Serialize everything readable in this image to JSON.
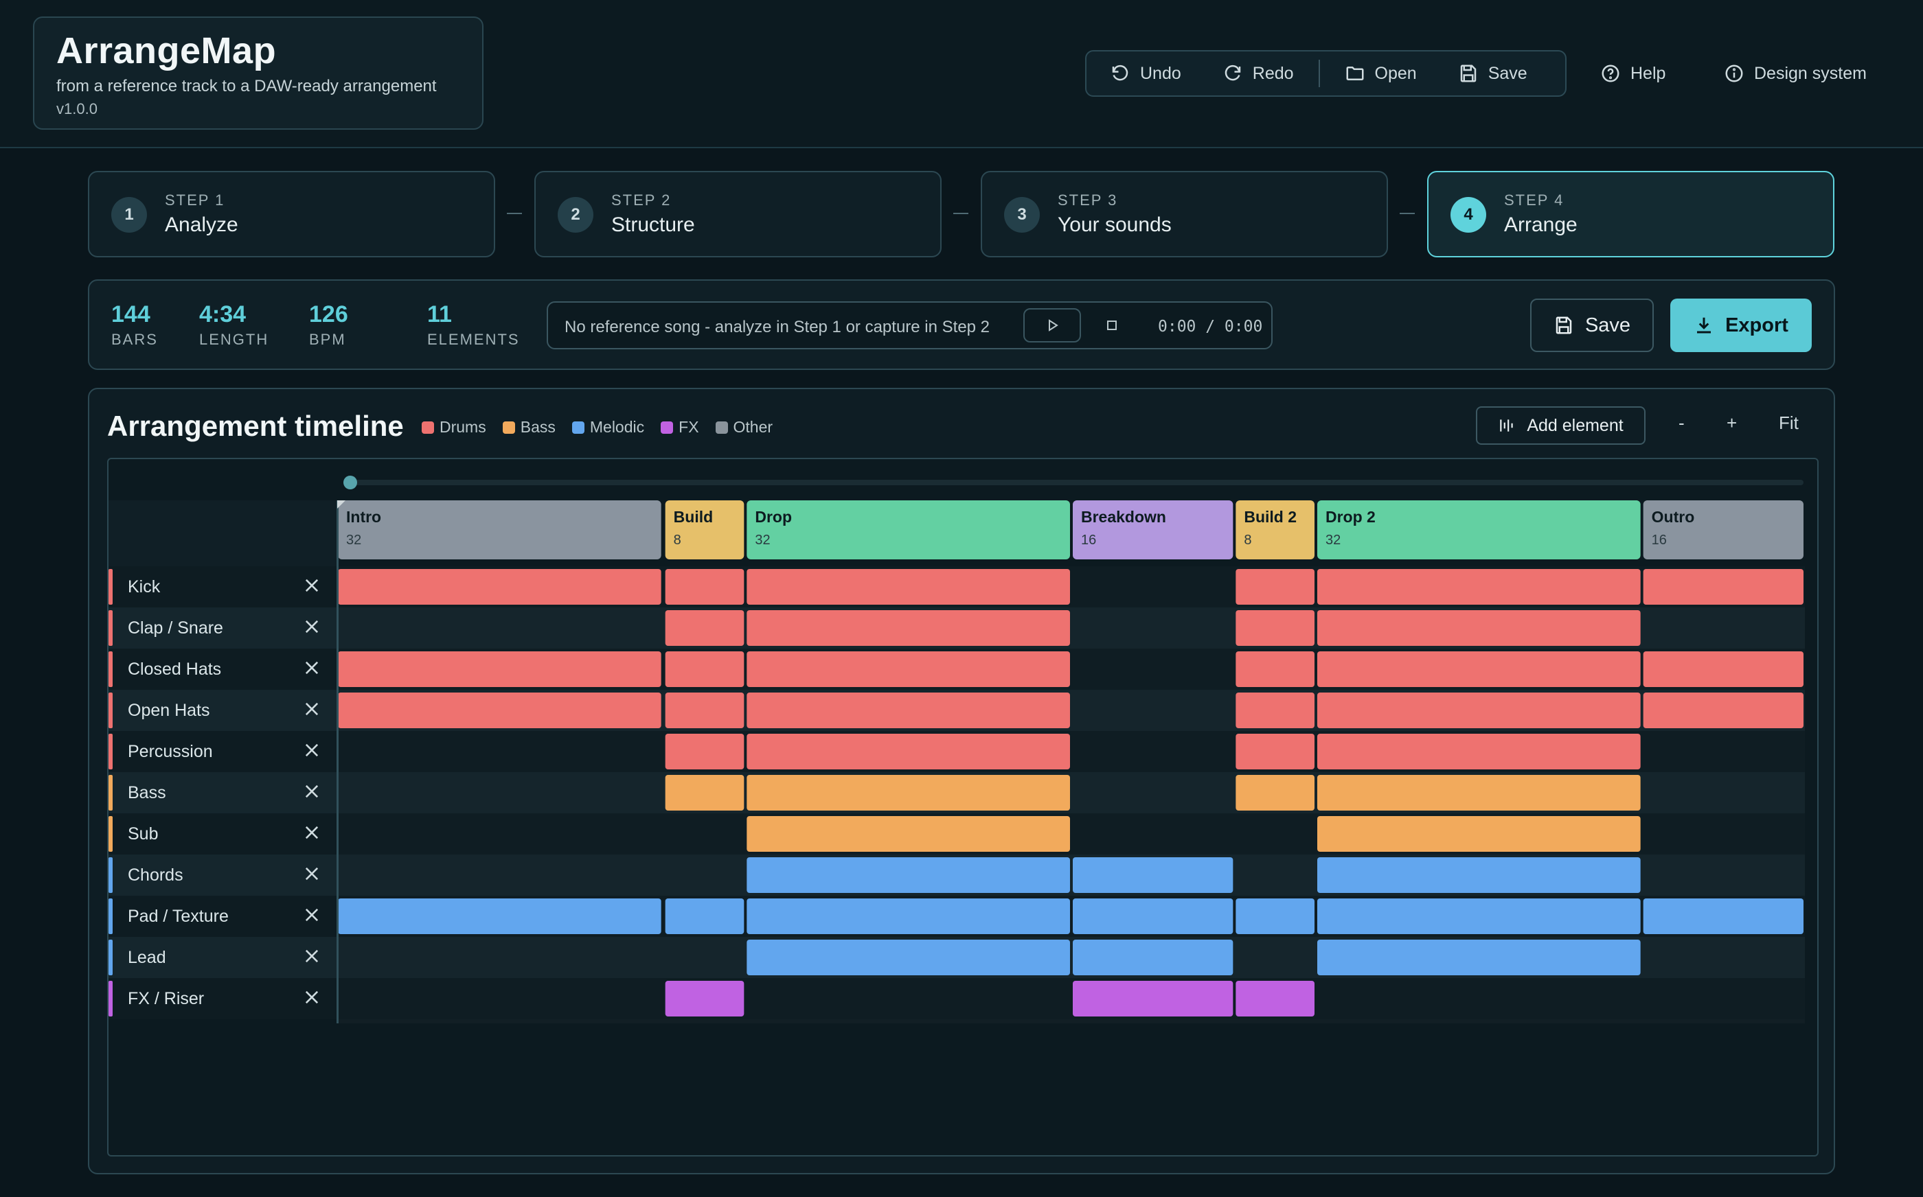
{
  "app": {
    "title": "ArrangeMap",
    "subtitle": "from a reference track to a DAW-ready arrangement",
    "version": "v1.0.0"
  },
  "toolbar": {
    "undo_label": "Undo",
    "redo_label": "Redo",
    "open_label": "Open",
    "save_label": "Save",
    "help_label": "Help",
    "design_label": "Design system"
  },
  "steps": [
    {
      "num": "1",
      "label": "STEP 1",
      "name": "Analyze",
      "active": false
    },
    {
      "num": "2",
      "label": "STEP 2",
      "name": "Structure",
      "active": false
    },
    {
      "num": "3",
      "label": "STEP 3",
      "name": "Your sounds",
      "active": false
    },
    {
      "num": "4",
      "label": "STEP 4",
      "name": "Arrange",
      "active": true
    }
  ],
  "stats": {
    "bars": {
      "value": "144",
      "label": "BARS"
    },
    "length": {
      "value": "4:34",
      "label": "LENGTH"
    },
    "bpm": {
      "value": "126",
      "label": "BPM"
    },
    "elements": {
      "value": "11",
      "label": "ELEMENTS"
    }
  },
  "player": {
    "message": "No reference song - analyze in Step 1 or capture in Step 2",
    "time": "0:00 / 0:00"
  },
  "actions": {
    "save_label": "Save",
    "export_label": "Export"
  },
  "timeline": {
    "title": "Arrangement timeline",
    "legend": [
      {
        "name": "Drums",
        "color": "#ee7270"
      },
      {
        "name": "Bass",
        "color": "#f2aa5c"
      },
      {
        "name": "Melodic",
        "color": "#62a6ee"
      },
      {
        "name": "FX",
        "color": "#c062e2"
      },
      {
        "name": "Other",
        "color": "#8a949c"
      }
    ],
    "add_element_label": "Add element",
    "zoom_out_label": "-",
    "zoom_in_label": "+",
    "fit_label": "Fit",
    "total_bars": 144,
    "sections": [
      {
        "name": "Intro",
        "bars": "32",
        "length": 32,
        "color": "#8a949f"
      },
      {
        "name": "Build",
        "bars": "8",
        "length": 8,
        "color": "#e6c06a"
      },
      {
        "name": "Drop",
        "bars": "32",
        "length": 32,
        "color": "#63d0a2"
      },
      {
        "name": "Breakdown",
        "bars": "16",
        "length": 16,
        "color": "#b298de"
      },
      {
        "name": "Build 2",
        "bars": "8",
        "length": 8,
        "color": "#e6c06a"
      },
      {
        "name": "Drop 2",
        "bars": "32",
        "length": 32,
        "color": "#63d0a2"
      },
      {
        "name": "Outro",
        "bars": "16",
        "length": 16,
        "color": "#8a949f"
      }
    ],
    "tracks": [
      {
        "name": "Kick",
        "color": "#ee7270",
        "active": [
          1,
          1,
          1,
          0,
          1,
          1,
          1
        ]
      },
      {
        "name": "Clap / Snare",
        "color": "#ee7270",
        "active": [
          0,
          1,
          1,
          0,
          1,
          1,
          0
        ]
      },
      {
        "name": "Closed Hats",
        "color": "#ee7270",
        "active": [
          1,
          1,
          1,
          0,
          1,
          1,
          1
        ]
      },
      {
        "name": "Open Hats",
        "color": "#ee7270",
        "active": [
          1,
          1,
          1,
          0,
          1,
          1,
          1
        ]
      },
      {
        "name": "Percussion",
        "color": "#ee7270",
        "active": [
          0,
          1,
          1,
          0,
          1,
          1,
          0
        ]
      },
      {
        "name": "Bass",
        "color": "#f2aa5c",
        "active": [
          0,
          1,
          1,
          0,
          1,
          1,
          0
        ]
      },
      {
        "name": "Sub",
        "color": "#f2aa5c",
        "active": [
          0,
          0,
          1,
          0,
          0,
          1,
          0
        ]
      },
      {
        "name": "Chords",
        "color": "#62a6ee",
        "active": [
          0,
          0,
          1,
          1,
          0,
          1,
          0
        ]
      },
      {
        "name": "Pad / Texture",
        "color": "#62a6ee",
        "active": [
          1,
          1,
          1,
          1,
          1,
          1,
          1
        ]
      },
      {
        "name": "Lead",
        "color": "#62a6ee",
        "active": [
          0,
          0,
          1,
          1,
          0,
          1,
          0
        ]
      },
      {
        "name": "FX / Riser",
        "color": "#c062e2",
        "active": [
          0,
          1,
          0,
          1,
          1,
          0,
          0
        ]
      }
    ]
  }
}
